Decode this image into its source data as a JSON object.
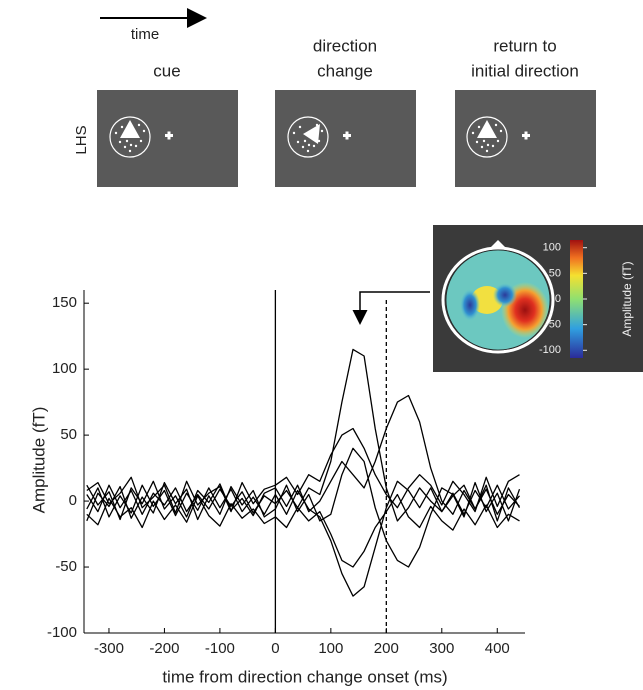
{
  "chart_data": {
    "type": "line",
    "time_label": "time",
    "row_label": "LHS",
    "panel_labels": [
      [
        "cue"
      ],
      [
        "direction",
        "change"
      ],
      [
        "return to",
        "initial direction"
      ]
    ],
    "xlabel": "time from direction change onset (ms)",
    "ylabel": "Amplitude (fT)",
    "xlim": [
      -345,
      450
    ],
    "ylim": [
      -100,
      160
    ],
    "xticks": [
      -300,
      -200,
      -100,
      0,
      100,
      200,
      300,
      400
    ],
    "yticks": [
      -100,
      -50,
      0,
      50,
      100,
      150
    ],
    "vlines": [
      0,
      200
    ],
    "color": "#000000",
    "x": [
      -340,
      -320,
      -300,
      -280,
      -260,
      -240,
      -220,
      -200,
      -180,
      -160,
      -140,
      -120,
      -100,
      -80,
      -60,
      -40,
      -20,
      0,
      20,
      40,
      60,
      80,
      100,
      120,
      140,
      160,
      180,
      200,
      220,
      240,
      260,
      280,
      300,
      320,
      340,
      360,
      380,
      400,
      420,
      440
    ],
    "series": [
      {
        "values": [
          5,
          -8,
          12,
          -5,
          8,
          -10,
          6,
          -3,
          10,
          -8,
          5,
          -6,
          9,
          -4,
          7,
          -9,
          4,
          -2,
          8,
          -5,
          10,
          5,
          30,
          75,
          115,
          110,
          55,
          10,
          -15,
          -5,
          10,
          0,
          -8,
          6,
          -10,
          8,
          -5,
          12,
          -6,
          4
        ]
      },
      {
        "values": [
          -6,
          10,
          -12,
          4,
          -9,
          12,
          -4,
          8,
          -11,
          6,
          -7,
          10,
          -5,
          9,
          -8,
          3,
          -10,
          5,
          -10,
          8,
          -6,
          -12,
          -30,
          -55,
          -72,
          -65,
          -35,
          -5,
          15,
          8,
          -5,
          10,
          -8,
          4,
          12,
          -6,
          9,
          -10,
          5,
          -4
        ]
      },
      {
        "values": [
          12,
          -3,
          7,
          -14,
          10,
          -2,
          15,
          -6,
          4,
          -12,
          8,
          -1,
          13,
          -7,
          2,
          -11,
          6,
          10,
          -4,
          12,
          -8,
          0,
          15,
          30,
          20,
          10,
          30,
          55,
          75,
          80,
          60,
          25,
          0,
          -10,
          8,
          -6,
          12,
          -15,
          10,
          -5
        ]
      },
      {
        "values": [
          -15,
          6,
          -4,
          11,
          -13,
          3,
          -9,
          14,
          -2,
          9,
          -14,
          4,
          -10,
          11,
          -3,
          8,
          -12,
          -6,
          12,
          -8,
          5,
          -15,
          -10,
          20,
          40,
          30,
          -5,
          -30,
          -45,
          -50,
          -35,
          -10,
          10,
          5,
          -12,
          14,
          -8,
          6,
          -15,
          9
        ]
      },
      {
        "values": [
          8,
          14,
          -2,
          6,
          18,
          -5,
          3,
          12,
          -9,
          15,
          -3,
          6,
          11,
          -8,
          14,
          -2,
          9,
          12,
          18,
          5,
          20,
          15,
          35,
          50,
          55,
          40,
          20,
          5,
          -5,
          10,
          20,
          12,
          -3,
          15,
          5,
          -8,
          18,
          -4,
          15,
          20
        ]
      },
      {
        "values": [
          -10,
          -18,
          2,
          -12,
          -5,
          -20,
          0,
          -14,
          -3,
          -16,
          4,
          -11,
          -19,
          -2,
          -13,
          -6,
          -17,
          -12,
          -20,
          -5,
          -15,
          -8,
          -25,
          -45,
          -50,
          -38,
          -20,
          -8,
          5,
          -12,
          -20,
          -4,
          -15,
          -22,
          -6,
          -18,
          -3,
          -20,
          -10,
          -15
        ]
      }
    ],
    "inset": {
      "colorbar_label": "Amplitude (fT)",
      "colorbar_lim": [
        -115,
        115
      ],
      "colorbar_ticks": [
        100,
        50,
        0,
        -50,
        -100
      ]
    }
  }
}
